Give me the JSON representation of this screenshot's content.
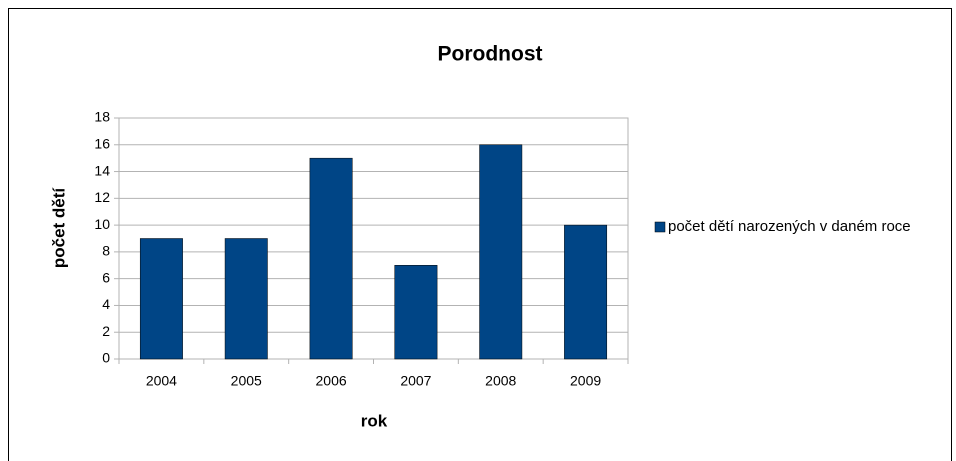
{
  "chart_data": {
    "type": "bar",
    "title": "Porodnost",
    "categories": [
      "2004",
      "2005",
      "2006",
      "2007",
      "2008",
      "2009"
    ],
    "series": [
      {
        "name": "počet dětí narozených v daném roce",
        "color": "#004586",
        "values": [
          9,
          9,
          15,
          7,
          16,
          10
        ]
      }
    ],
    "xlabel": "rok",
    "ylabel": "počet dětí",
    "ylim": [
      0,
      18
    ],
    "yticks": [
      0,
      2,
      4,
      6,
      8,
      10,
      12,
      14,
      16,
      18
    ],
    "grid": true,
    "legend": "right"
  }
}
